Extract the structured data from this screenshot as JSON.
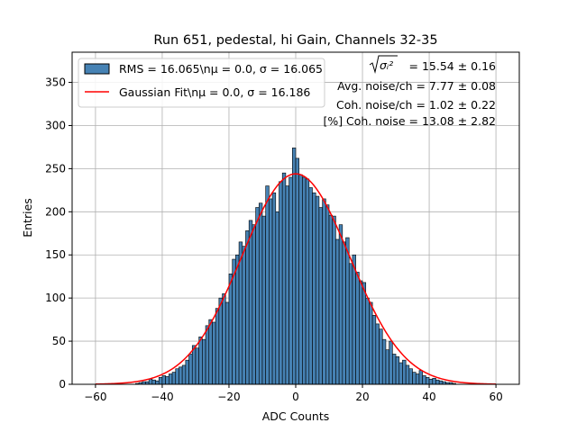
{
  "chart_data": {
    "type": "bar",
    "title": "Run 651, pedestal, hi Gain, Channels 32-35",
    "xlabel": "ADC Counts",
    "ylabel": "Entries",
    "xlim": [
      -67,
      67
    ],
    "ylim": [
      0,
      385
    ],
    "xticks": [
      -60,
      -40,
      -20,
      0,
      20,
      40,
      60
    ],
    "yticks": [
      0,
      50,
      100,
      150,
      200,
      250,
      300,
      350
    ],
    "grid": true,
    "legend_position": "top-left",
    "bin_width": 1,
    "bins": {
      "x_start": -60,
      "values": [
        0,
        0,
        0,
        0,
        0,
        0,
        0,
        0,
        0,
        0,
        0,
        0,
        1,
        2,
        3,
        3,
        6,
        5,
        4,
        8,
        10,
        9,
        12,
        14,
        18,
        20,
        22,
        28,
        35,
        45,
        42,
        55,
        52,
        68,
        75,
        72,
        88,
        100,
        105,
        95,
        128,
        145,
        150,
        165,
        160,
        178,
        190,
        185,
        205,
        210,
        195,
        230,
        215,
        222,
        200,
        235,
        245,
        230,
        240,
        274,
        262,
        243,
        240,
        238,
        228,
        222,
        218,
        205,
        215,
        208,
        196,
        195,
        168,
        185,
        165,
        170,
        140,
        150,
        130,
        120,
        118,
        100,
        95,
        80,
        70,
        64,
        52,
        40,
        50,
        35,
        32,
        25,
        28,
        22,
        18,
        14,
        12,
        16,
        10,
        8,
        6,
        7,
        5,
        4,
        3,
        2,
        2,
        1,
        0,
        0,
        0,
        0,
        0,
        0,
        0,
        0,
        0,
        0,
        0,
        0,
        0
      ]
    },
    "series": [
      {
        "name": "RMS = 16.065\\n$\\mu$ = 0.0, $\\sigma$ = 16.065",
        "display": "RMS = 16.065\\nμ = 0.0, σ = 16.065",
        "kind": "histogram",
        "color": "#4682b4",
        "edge_color": "#000000"
      },
      {
        "name": "Gaussian Fit\\n$\\mu$ = 0.0, $\\sigma$ = 16.186",
        "display": "Gaussian Fit\\nμ = 0.0, σ = 16.186",
        "kind": "line",
        "color": "#ff0000",
        "mu": 0.0,
        "sigma": 16.186,
        "amplitude": 244
      }
    ],
    "annotations": [
      {
        "label": "σᵢ²",
        "value": " = 15.54 ± 0.16"
      },
      {
        "label": "",
        "value": "Avg. noise/ch = 7.77 ± 0.08"
      },
      {
        "label": "",
        "value": "Coh. noise/ch = 1.02 ± 0.22"
      },
      {
        "label": "",
        "value": "[%] Coh. noise = 13.08 ± 2.82"
      }
    ]
  }
}
